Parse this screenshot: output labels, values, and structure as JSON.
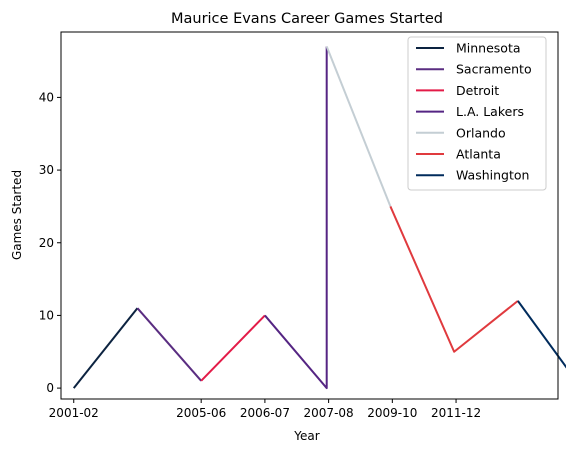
{
  "chart_data": {
    "type": "line",
    "title": "Maurice Evans  Career Games Started",
    "xlabel": "Year",
    "ylabel": "Games Started",
    "ylim": [
      -1.5,
      49
    ],
    "yticks": [
      0,
      10,
      20,
      30,
      40
    ],
    "x_tick_labels": [
      "2001-02",
      "2005-06",
      "2006-07",
      "2007-08",
      "2009-10",
      "2011-12"
    ],
    "x_tick_positions": [
      0,
      2,
      3,
      4,
      5,
      6
    ],
    "xlim": [
      -0.2,
      7.6
    ],
    "legend_position": "top-right",
    "grid": false,
    "series": [
      {
        "name": "Minnesota",
        "color": "#0c2340",
        "points": [
          [
            0,
            0
          ],
          [
            1,
            11
          ]
        ]
      },
      {
        "name": "Sacramento",
        "color": "#5a2d81",
        "points": [
          [
            1,
            11
          ],
          [
            2,
            1
          ]
        ]
      },
      {
        "name": "Detroit",
        "color": "#e31b48",
        "points": [
          [
            2,
            1
          ],
          [
            3,
            10
          ]
        ]
      },
      {
        "name": "L.A. Lakers",
        "color": "#552583",
        "points": [
          [
            3,
            10
          ],
          [
            3.97,
            0
          ],
          [
            3.97,
            47
          ]
        ]
      },
      {
        "name": "Orlando",
        "color": "#c4ced4",
        "points": [
          [
            3.97,
            47
          ],
          [
            4.97,
            25
          ]
        ]
      },
      {
        "name": "Atlanta",
        "color": "#e03a3e",
        "points": [
          [
            4.97,
            25
          ],
          [
            5.97,
            5
          ],
          [
            6.97,
            12
          ]
        ]
      },
      {
        "name": "Washington",
        "color": "#002b5c",
        "points": [
          [
            6.97,
            12
          ],
          [
            7.97,
            0
          ]
        ]
      }
    ]
  }
}
